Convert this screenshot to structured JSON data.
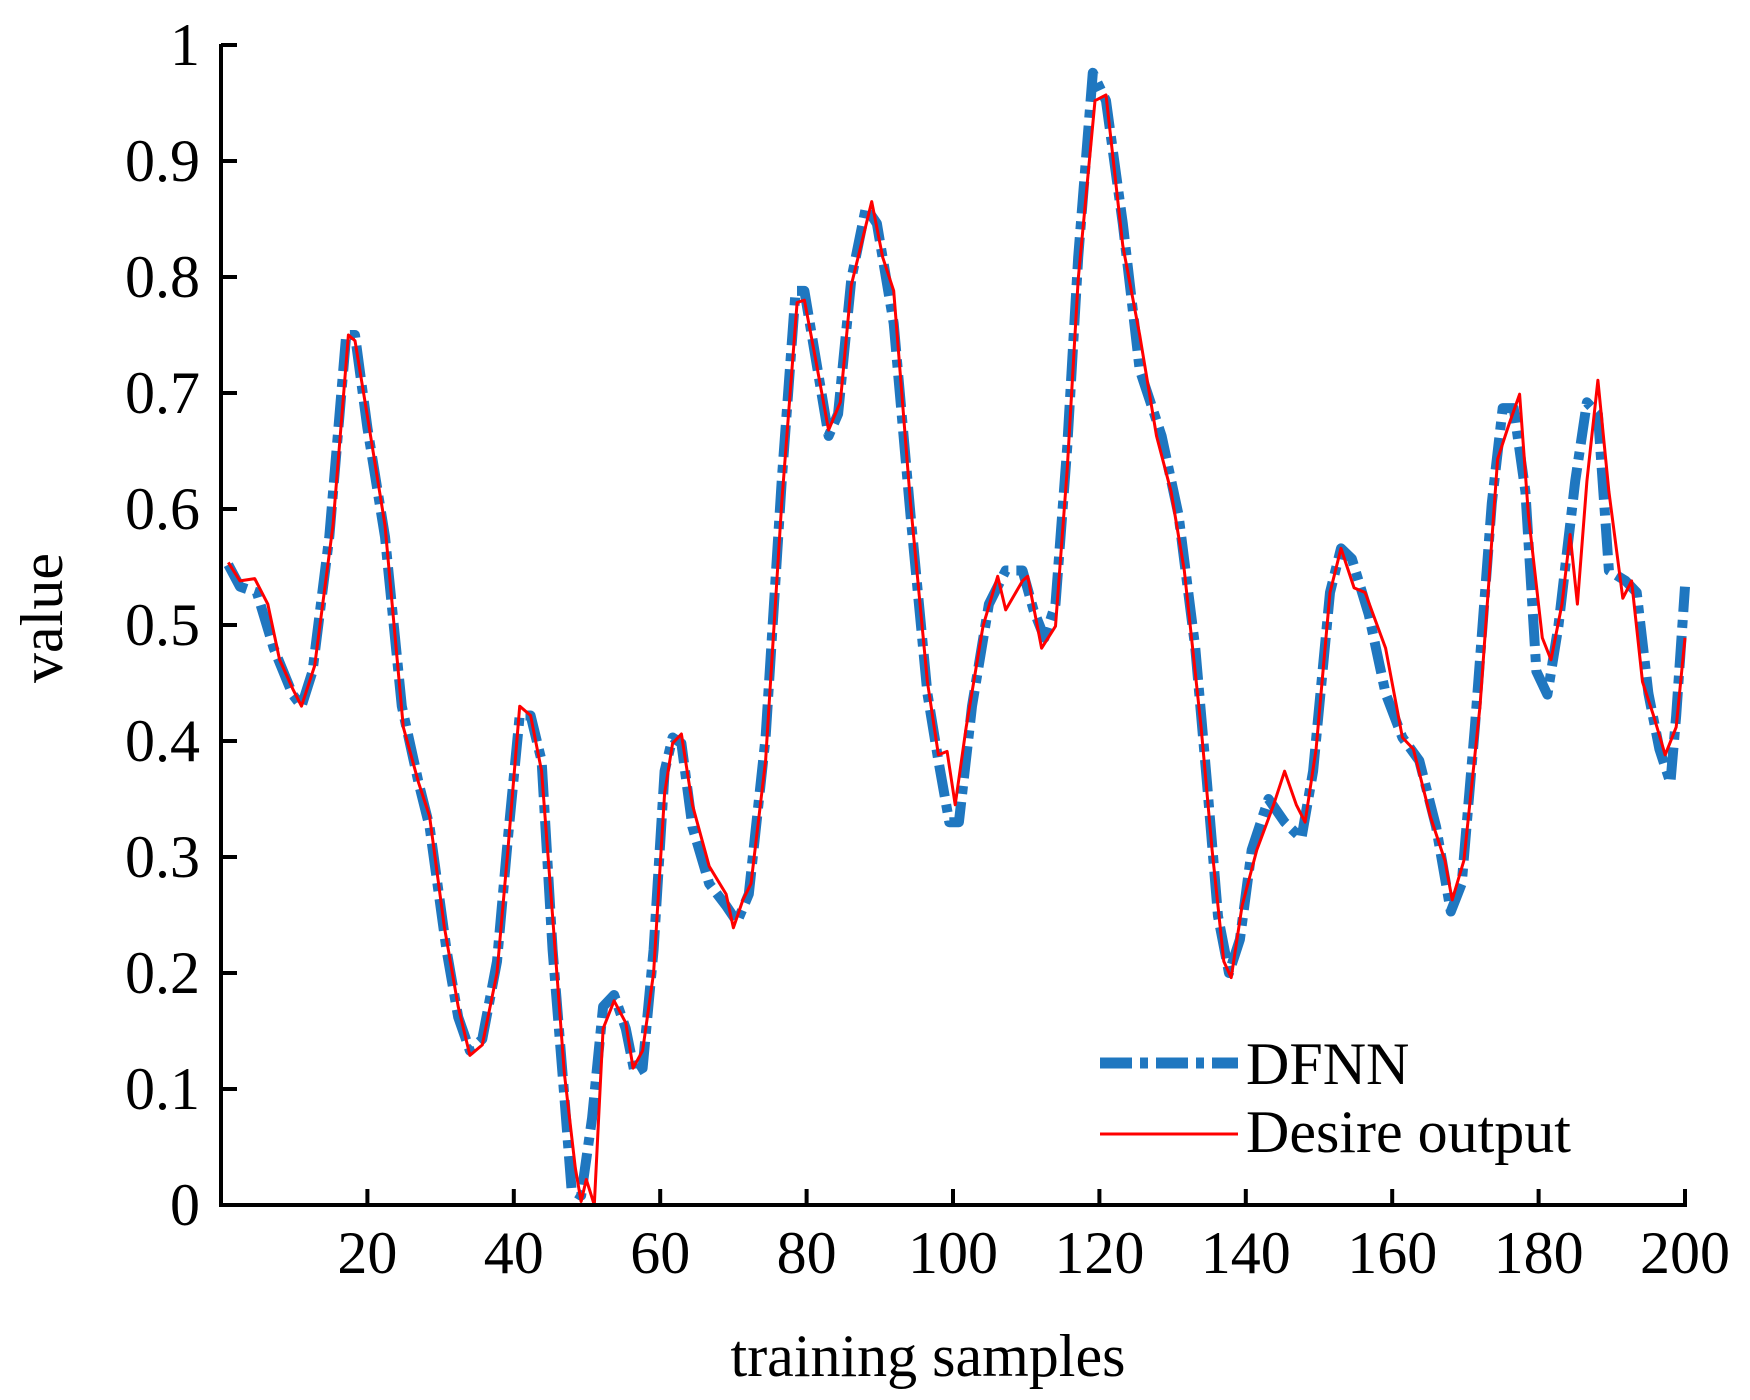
{
  "chart_data": {
    "type": "line",
    "title": "",
    "xlabel": "training samples",
    "ylabel": "value",
    "xlim": [
      0,
      200
    ],
    "ylim": [
      0,
      1
    ],
    "grid": false,
    "legend_position": "bottom-right",
    "x_ticks": [
      "20",
      "40",
      "60",
      "80",
      "100",
      "120",
      "140",
      "160",
      "180",
      "200"
    ],
    "y_ticks": [
      "0",
      "0.1",
      "0.2",
      "0.3",
      "0.4",
      "0.5",
      "0.6",
      "0.7",
      "0.8",
      "0.9",
      "1"
    ],
    "series": [
      {
        "name": "DFNN",
        "color": "#1f77c0",
        "style": "dash-dot",
        "points": [
          [
            1,
            0.552
          ],
          [
            2.6,
            0.533
          ],
          [
            4.9,
            0.528
          ],
          [
            7.2,
            0.48
          ],
          [
            9.8,
            0.44
          ],
          [
            11,
            0.43
          ],
          [
            12.5,
            0.46
          ],
          [
            14.8,
            0.576
          ],
          [
            17.1,
            0.75
          ],
          [
            18.3,
            0.75
          ],
          [
            20,
            0.67
          ],
          [
            22.4,
            0.576
          ],
          [
            24.7,
            0.43
          ],
          [
            27,
            0.364
          ],
          [
            28.5,
            0.326
          ],
          [
            30.8,
            0.22
          ],
          [
            32.4,
            0.162
          ],
          [
            34,
            0.133
          ],
          [
            35.7,
            0.143
          ],
          [
            37.7,
            0.21
          ],
          [
            39.2,
            0.316
          ],
          [
            40.8,
            0.422
          ],
          [
            42.3,
            0.422
          ],
          [
            43.8,
            0.383
          ],
          [
            45.3,
            0.22
          ],
          [
            46.9,
            0.094
          ],
          [
            47.9,
            0.013
          ],
          [
            49.2,
            0.008
          ],
          [
            50.7,
            0.075
          ],
          [
            52.2,
            0.171
          ],
          [
            53.7,
            0.181
          ],
          [
            55.3,
            0.152
          ],
          [
            56.5,
            0.114
          ],
          [
            57.6,
            0.118
          ],
          [
            59.1,
            0.22
          ],
          [
            60.6,
            0.374
          ],
          [
            61.7,
            0.403
          ],
          [
            62.9,
            0.398
          ],
          [
            64.4,
            0.326
          ],
          [
            66.7,
            0.277
          ],
          [
            69,
            0.258
          ],
          [
            70.5,
            0.244
          ],
          [
            72.1,
            0.268
          ],
          [
            74.4,
            0.403
          ],
          [
            76.6,
            0.624
          ],
          [
            78.5,
            0.788
          ],
          [
            79.7,
            0.788
          ],
          [
            81.5,
            0.72
          ],
          [
            83,
            0.663
          ],
          [
            84.3,
            0.682
          ],
          [
            86.1,
            0.798
          ],
          [
            88.1,
            0.86
          ],
          [
            89.6,
            0.846
          ],
          [
            91.9,
            0.76
          ],
          [
            94.2,
            0.595
          ],
          [
            96.5,
            0.441
          ],
          [
            98,
            0.383
          ],
          [
            99.5,
            0.33
          ],
          [
            100.8,
            0.33
          ],
          [
            102.6,
            0.43
          ],
          [
            104.9,
            0.518
          ],
          [
            107.2,
            0.547
          ],
          [
            109.5,
            0.547
          ],
          [
            111,
            0.513
          ],
          [
            112.5,
            0.489
          ],
          [
            114,
            0.518
          ],
          [
            115.6,
            0.653
          ],
          [
            117.1,
            0.817
          ],
          [
            119.1,
            0.976
          ],
          [
            120.9,
            0.952
          ],
          [
            123.2,
            0.846
          ],
          [
            125.5,
            0.72
          ],
          [
            128.5,
            0.663
          ],
          [
            130.8,
            0.595
          ],
          [
            133.1,
            0.48
          ],
          [
            134.7,
            0.364
          ],
          [
            136.2,
            0.249
          ],
          [
            137.7,
            0.2
          ],
          [
            139.2,
            0.229
          ],
          [
            140.8,
            0.306
          ],
          [
            143.1,
            0.35
          ],
          [
            145.3,
            0.33
          ],
          [
            147.6,
            0.316
          ],
          [
            149.2,
            0.374
          ],
          [
            151.5,
            0.528
          ],
          [
            153,
            0.566
          ],
          [
            154.5,
            0.557
          ],
          [
            156.8,
            0.509
          ],
          [
            159.1,
            0.441
          ],
          [
            161.4,
            0.403
          ],
          [
            163.7,
            0.383
          ],
          [
            166,
            0.326
          ],
          [
            168,
            0.253
          ],
          [
            169.5,
            0.277
          ],
          [
            171.3,
            0.412
          ],
          [
            173.6,
            0.605
          ],
          [
            175.1,
            0.687
          ],
          [
            176.6,
            0.687
          ],
          [
            178.2,
            0.615
          ],
          [
            179.7,
            0.46
          ],
          [
            181.2,
            0.44
          ],
          [
            182.7,
            0.499
          ],
          [
            185,
            0.624
          ],
          [
            186.6,
            0.692
          ],
          [
            188.1,
            0.682
          ],
          [
            189.6,
            0.547
          ],
          [
            191.9,
            0.538
          ],
          [
            193.4,
            0.528
          ],
          [
            195,
            0.441
          ],
          [
            196.5,
            0.393
          ],
          [
            198,
            0.364
          ],
          [
            198.8,
            0.422
          ],
          [
            200,
            0.533
          ]
        ]
      },
      {
        "name": "Desire output",
        "color": "#ff0000",
        "style": "solid",
        "points": [
          [
            1,
            0.554
          ],
          [
            2.6,
            0.538
          ],
          [
            4.6,
            0.54
          ],
          [
            6.4,
            0.518
          ],
          [
            8,
            0.47
          ],
          [
            9.8,
            0.445
          ],
          [
            11,
            0.43
          ],
          [
            12.8,
            0.465
          ],
          [
            15.3,
            0.586
          ],
          [
            17.4,
            0.75
          ],
          [
            18.3,
            0.745
          ],
          [
            20,
            0.68
          ],
          [
            22.4,
            0.586
          ],
          [
            24.9,
            0.412
          ],
          [
            27,
            0.364
          ],
          [
            28.5,
            0.335
          ],
          [
            30.5,
            0.24
          ],
          [
            32.4,
            0.171
          ],
          [
            34,
            0.129
          ],
          [
            35.7,
            0.138
          ],
          [
            37.7,
            0.2
          ],
          [
            39.2,
            0.306
          ],
          [
            40.8,
            0.43
          ],
          [
            42.3,
            0.422
          ],
          [
            43.8,
            0.374
          ],
          [
            45.3,
            0.249
          ],
          [
            46.9,
            0.114
          ],
          [
            48.4,
            0.032
          ],
          [
            49.2,
            0.003
          ],
          [
            49.9,
            0.022
          ],
          [
            51,
            0
          ],
          [
            52.2,
            0.152
          ],
          [
            53.7,
            0.176
          ],
          [
            55.3,
            0.157
          ],
          [
            56.3,
            0.118
          ],
          [
            57.6,
            0.133
          ],
          [
            59.1,
            0.2
          ],
          [
            60.6,
            0.355
          ],
          [
            61.7,
            0.398
          ],
          [
            62.9,
            0.406
          ],
          [
            64.4,
            0.345
          ],
          [
            66.7,
            0.292
          ],
          [
            69,
            0.268
          ],
          [
            70,
            0.239
          ],
          [
            71.3,
            0.263
          ],
          [
            72.4,
            0.277
          ],
          [
            74.4,
            0.383
          ],
          [
            76.6,
            0.605
          ],
          [
            78.7,
            0.778
          ],
          [
            79.7,
            0.78
          ],
          [
            81.2,
            0.73
          ],
          [
            83,
            0.668
          ],
          [
            84.6,
            0.692
          ],
          [
            86.1,
            0.793
          ],
          [
            88.9,
            0.865
          ],
          [
            90.4,
            0.817
          ],
          [
            91.9,
            0.788
          ],
          [
            94.2,
            0.605
          ],
          [
            96.5,
            0.451
          ],
          [
            98,
            0.388
          ],
          [
            99.2,
            0.391
          ],
          [
            100.3,
            0.345
          ],
          [
            101.8,
            0.412
          ],
          [
            104.1,
            0.499
          ],
          [
            106.1,
            0.542
          ],
          [
            107.2,
            0.513
          ],
          [
            109.5,
            0.538
          ],
          [
            110.2,
            0.542
          ],
          [
            112.1,
            0.48
          ],
          [
            114,
            0.499
          ],
          [
            115.6,
            0.634
          ],
          [
            117.1,
            0.798
          ],
          [
            119.4,
            0.952
          ],
          [
            120.9,
            0.957
          ],
          [
            123.2,
            0.827
          ],
          [
            125.5,
            0.75
          ],
          [
            127.8,
            0.663
          ],
          [
            129.8,
            0.615
          ],
          [
            131.6,
            0.547
          ],
          [
            133.9,
            0.412
          ],
          [
            135.4,
            0.306
          ],
          [
            137,
            0.21
          ],
          [
            138,
            0.196
          ],
          [
            139.5,
            0.258
          ],
          [
            141.5,
            0.306
          ],
          [
            143.8,
            0.345
          ],
          [
            145.3,
            0.374
          ],
          [
            146.9,
            0.345
          ],
          [
            148.1,
            0.33
          ],
          [
            149.6,
            0.393
          ],
          [
            151.5,
            0.528
          ],
          [
            153,
            0.566
          ],
          [
            154.8,
            0.532
          ],
          [
            156.3,
            0.528
          ],
          [
            159.1,
            0.48
          ],
          [
            161.4,
            0.403
          ],
          [
            162.9,
            0.393
          ],
          [
            165.2,
            0.335
          ],
          [
            167.2,
            0.297
          ],
          [
            168.2,
            0.263
          ],
          [
            169.8,
            0.297
          ],
          [
            172,
            0.43
          ],
          [
            174.4,
            0.643
          ],
          [
            175.9,
            0.672
          ],
          [
            177.4,
            0.699
          ],
          [
            178.6,
            0.595
          ],
          [
            180.5,
            0.489
          ],
          [
            181.7,
            0.47
          ],
          [
            183.2,
            0.518
          ],
          [
            184.3,
            0.578
          ],
          [
            185.3,
            0.518
          ],
          [
            186.6,
            0.624
          ],
          [
            188.1,
            0.711
          ],
          [
            189.6,
            0.615
          ],
          [
            191.5,
            0.523
          ],
          [
            192.7,
            0.538
          ],
          [
            194.2,
            0.451
          ],
          [
            195.7,
            0.422
          ],
          [
            197.3,
            0.388
          ],
          [
            198.8,
            0.412
          ],
          [
            200,
            0.489
          ]
        ]
      }
    ]
  }
}
